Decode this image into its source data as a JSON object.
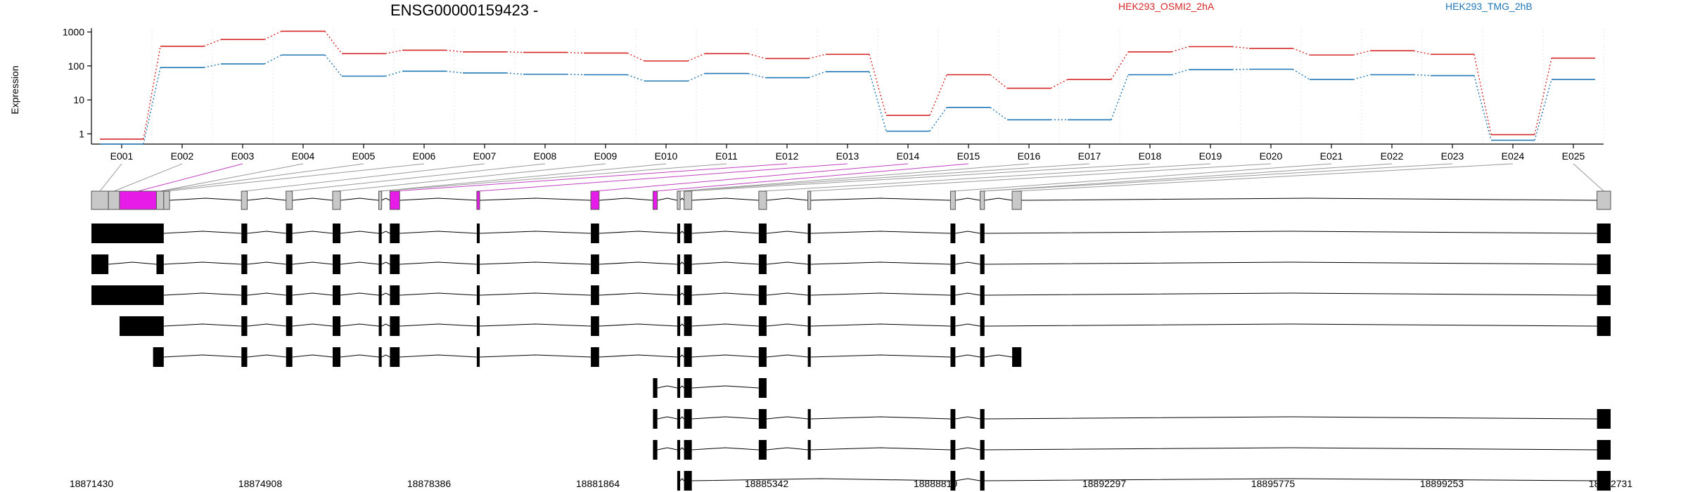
{
  "chart_data": {
    "type": "line",
    "title": "ENSG00000159423 -",
    "ylabel": "Expression",
    "ylog": true,
    "yticks": [
      "1000",
      "100",
      "10",
      "1"
    ],
    "yticks_values": [
      1000,
      100,
      10,
      1
    ],
    "ylim": [
      0.5,
      1300
    ],
    "categories": [
      "E001",
      "E002",
      "E003",
      "E004",
      "E005",
      "E006",
      "E007",
      "E008",
      "E009",
      "E010",
      "E011",
      "E012",
      "E013",
      "E014",
      "E015",
      "E016",
      "E017",
      "E018",
      "E019",
      "E020",
      "E021",
      "E022",
      "E023",
      "E024",
      "E025"
    ],
    "series": [
      {
        "name": "HEK293_OSMI2_2hA",
        "color": "#d62728",
        "values": [
          0.7,
          380,
          600,
          1050,
          230,
          290,
          260,
          250,
          240,
          140,
          230,
          165,
          220,
          3.5,
          55,
          22,
          40,
          260,
          370,
          330,
          210,
          280,
          220,
          0.95,
          170
        ]
      },
      {
        "name": "HEK293_TMG_2hB",
        "color": "#1f77b4",
        "values": [
          0.5,
          90,
          115,
          210,
          50,
          70,
          62,
          57,
          55,
          36,
          60,
          45,
          68,
          1.2,
          6,
          2.6,
          2.6,
          55,
          78,
          80,
          40,
          55,
          52,
          0.65,
          40
        ]
      }
    ],
    "exon_track": {
      "coord_start": 18871430,
      "coord_end": 18902731,
      "exons": [
        {
          "start": 18871430,
          "end": 18871780,
          "highlight": false
        },
        {
          "start": 18871780,
          "end": 18872010,
          "highlight": false
        },
        {
          "start": 18872010,
          "end": 18872770,
          "highlight": true
        },
        {
          "start": 18872770,
          "end": 18872920,
          "highlight": false
        },
        {
          "start": 18872920,
          "end": 18873040,
          "highlight": false
        },
        {
          "start": 18874520,
          "end": 18874640,
          "highlight": false
        },
        {
          "start": 18875440,
          "end": 18875570,
          "highlight": false
        },
        {
          "start": 18876400,
          "end": 18876560,
          "highlight": false
        },
        {
          "start": 18877350,
          "end": 18877410,
          "highlight": false
        },
        {
          "start": 18877580,
          "end": 18877780,
          "highlight": true
        },
        {
          "start": 18879370,
          "end": 18879430,
          "highlight": true
        },
        {
          "start": 18881720,
          "end": 18881890,
          "highlight": true
        },
        {
          "start": 18883000,
          "end": 18883090,
          "highlight": true
        },
        {
          "start": 18883500,
          "end": 18883560,
          "highlight": false
        },
        {
          "start": 18883640,
          "end": 18883800,
          "highlight": false
        },
        {
          "start": 18885180,
          "end": 18885340,
          "highlight": false
        },
        {
          "start": 18886190,
          "end": 18886250,
          "highlight": false
        },
        {
          "start": 18889130,
          "end": 18889230,
          "highlight": false
        },
        {
          "start": 18889740,
          "end": 18889830,
          "highlight": false
        },
        {
          "start": 18890400,
          "end": 18890590,
          "highlight": false
        },
        {
          "start": 18902450,
          "end": 18902731,
          "highlight": false
        }
      ],
      "transcripts": [
        [
          [
            18871430,
            18872920
          ],
          [
            18874520,
            18874640
          ],
          [
            18875440,
            18875570
          ],
          [
            18876400,
            18876560
          ],
          [
            18877350,
            18877410
          ],
          [
            18877580,
            18877780
          ],
          [
            18879370,
            18879430
          ],
          [
            18881720,
            18881890
          ],
          [
            18883500,
            18883560
          ],
          [
            18883640,
            18883800
          ],
          [
            18885180,
            18885340
          ],
          [
            18886190,
            18886250
          ],
          [
            18889130,
            18889230
          ],
          [
            18889740,
            18889830
          ],
          [
            18902450,
            18902731
          ]
        ],
        [
          [
            18871430,
            18871780
          ],
          [
            18872770,
            18872920
          ],
          [
            18874520,
            18874640
          ],
          [
            18875440,
            18875570
          ],
          [
            18876400,
            18876560
          ],
          [
            18877350,
            18877410
          ],
          [
            18877580,
            18877780
          ],
          [
            18879370,
            18879430
          ],
          [
            18881720,
            18881890
          ],
          [
            18883500,
            18883560
          ],
          [
            18883640,
            18883800
          ],
          [
            18885180,
            18885340
          ],
          [
            18886190,
            18886250
          ],
          [
            18889130,
            18889230
          ],
          [
            18889740,
            18889830
          ],
          [
            18902450,
            18902731
          ]
        ],
        [
          [
            18871430,
            18872920
          ],
          [
            18874520,
            18874640
          ],
          [
            18875440,
            18875570
          ],
          [
            18876400,
            18876560
          ],
          [
            18877350,
            18877410
          ],
          [
            18877580,
            18877780
          ],
          [
            18879370,
            18879430
          ],
          [
            18881720,
            18881890
          ],
          [
            18883500,
            18883560
          ],
          [
            18883640,
            18883800
          ],
          [
            18885180,
            18885340
          ],
          [
            18886190,
            18886250
          ],
          [
            18889130,
            18889230
          ],
          [
            18889740,
            18889830
          ],
          [
            18902450,
            18902731
          ]
        ],
        [
          [
            18872010,
            18872920
          ],
          [
            18874520,
            18874640
          ],
          [
            18875440,
            18875570
          ],
          [
            18876400,
            18876560
          ],
          [
            18877350,
            18877410
          ],
          [
            18877580,
            18877780
          ],
          [
            18879370,
            18879430
          ],
          [
            18881720,
            18881890
          ],
          [
            18883500,
            18883560
          ],
          [
            18883640,
            18883800
          ],
          [
            18885180,
            18885340
          ],
          [
            18886190,
            18886250
          ],
          [
            18889130,
            18889230
          ],
          [
            18889740,
            18889830
          ],
          [
            18902450,
            18902731
          ]
        ],
        [
          [
            18872700,
            18872920
          ],
          [
            18874520,
            18874640
          ],
          [
            18875440,
            18875570
          ],
          [
            18876400,
            18876560
          ],
          [
            18877350,
            18877410
          ],
          [
            18877580,
            18877780
          ],
          [
            18879370,
            18879430
          ],
          [
            18881720,
            18881890
          ],
          [
            18883500,
            18883560
          ],
          [
            18883640,
            18883800
          ],
          [
            18885180,
            18885340
          ],
          [
            18886190,
            18886250
          ],
          [
            18889130,
            18889230
          ],
          [
            18889740,
            18889830
          ],
          [
            18890400,
            18890590
          ]
        ],
        [
          [
            18883000,
            18883090
          ],
          [
            18883500,
            18883560
          ],
          [
            18883640,
            18883800
          ],
          [
            18885180,
            18885340
          ]
        ],
        [
          [
            18883000,
            18883090
          ],
          [
            18883500,
            18883560
          ],
          [
            18883640,
            18883800
          ],
          [
            18885180,
            18885340
          ],
          [
            18886190,
            18886250
          ],
          [
            18889130,
            18889230
          ],
          [
            18889740,
            18889830
          ],
          [
            18902450,
            18902731
          ]
        ],
        [
          [
            18883000,
            18883090
          ],
          [
            18883500,
            18883560
          ],
          [
            18883640,
            18883800
          ],
          [
            18885180,
            18885340
          ],
          [
            18886190,
            18886250
          ],
          [
            18889130,
            18889230
          ],
          [
            18889740,
            18889830
          ],
          [
            18902450,
            18902731
          ]
        ],
        [
          [
            18883500,
            18883560
          ],
          [
            18883640,
            18883800
          ],
          [
            18889130,
            18889230
          ],
          [
            18889740,
            18889830
          ],
          [
            18902450,
            18902731
          ]
        ]
      ]
    },
    "coord_ticks": [
      "18871430",
      "18874908",
      "18878386",
      "18881864",
      "18885342",
      "18888819",
      "18892297",
      "18895775",
      "18899253",
      "18902731"
    ]
  }
}
